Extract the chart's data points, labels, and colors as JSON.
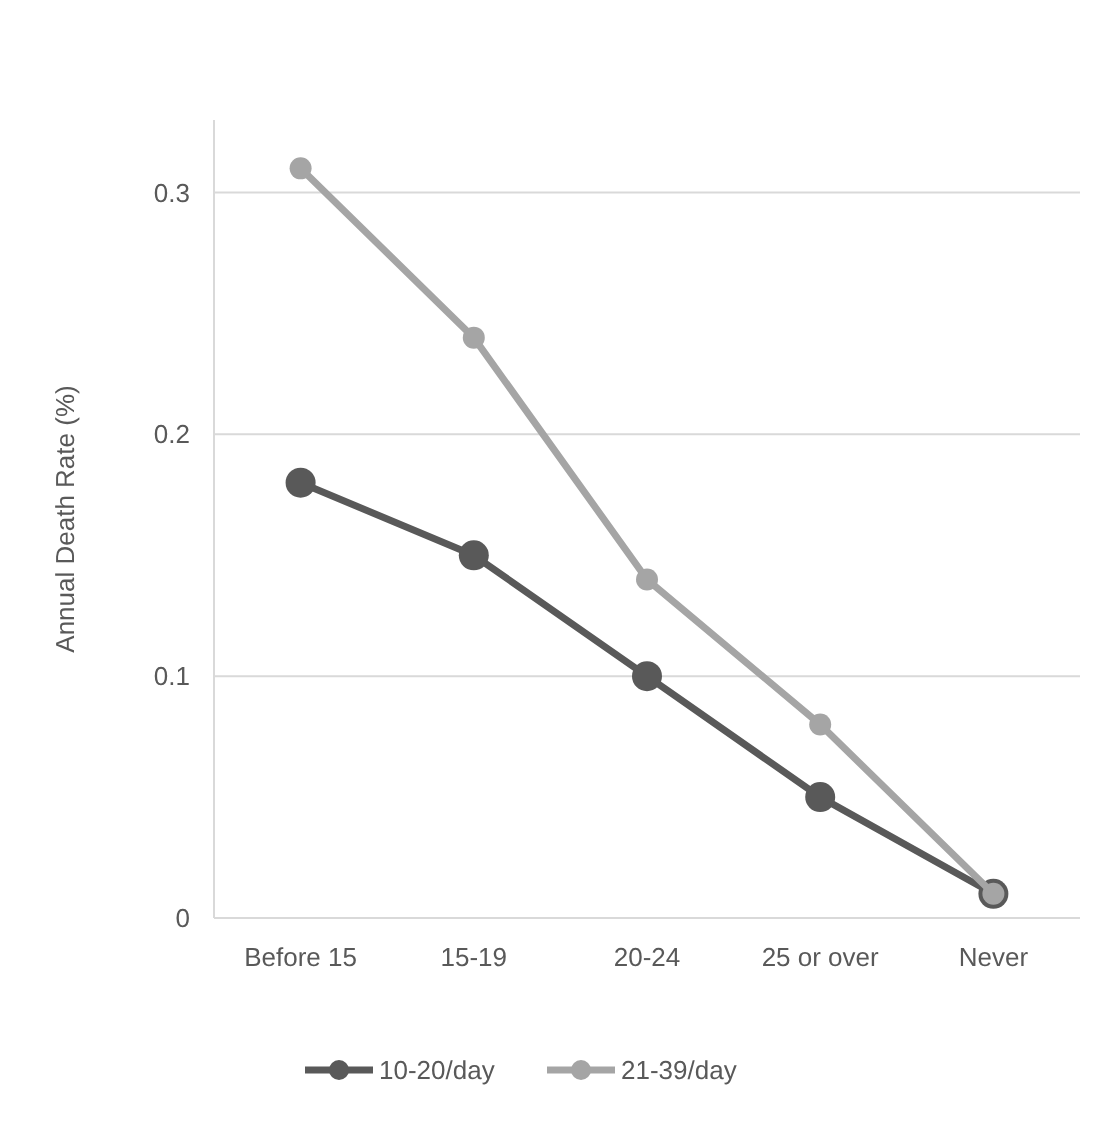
{
  "chart_data": {
    "type": "line",
    "ylabel": "Annual Death Rate (%)",
    "categories": [
      "Before 15",
      "15-19",
      "20-24",
      "25 or over",
      "Never"
    ],
    "series": [
      {
        "name": "10-20/day",
        "color": "#595959",
        "values": [
          0.18,
          0.15,
          0.1,
          0.05,
          0.01
        ]
      },
      {
        "name": "21-39/day",
        "color": "#a5a5a5",
        "values": [
          0.31,
          0.24,
          0.14,
          0.08,
          0.01
        ]
      }
    ],
    "ylim": [
      0,
      0.33
    ],
    "yticks": [
      {
        "value": 0,
        "label": "0"
      },
      0.1,
      0.2,
      0.3
    ],
    "grid": "y",
    "legend": "bottom",
    "marker": "circle",
    "line_style": "solid"
  }
}
